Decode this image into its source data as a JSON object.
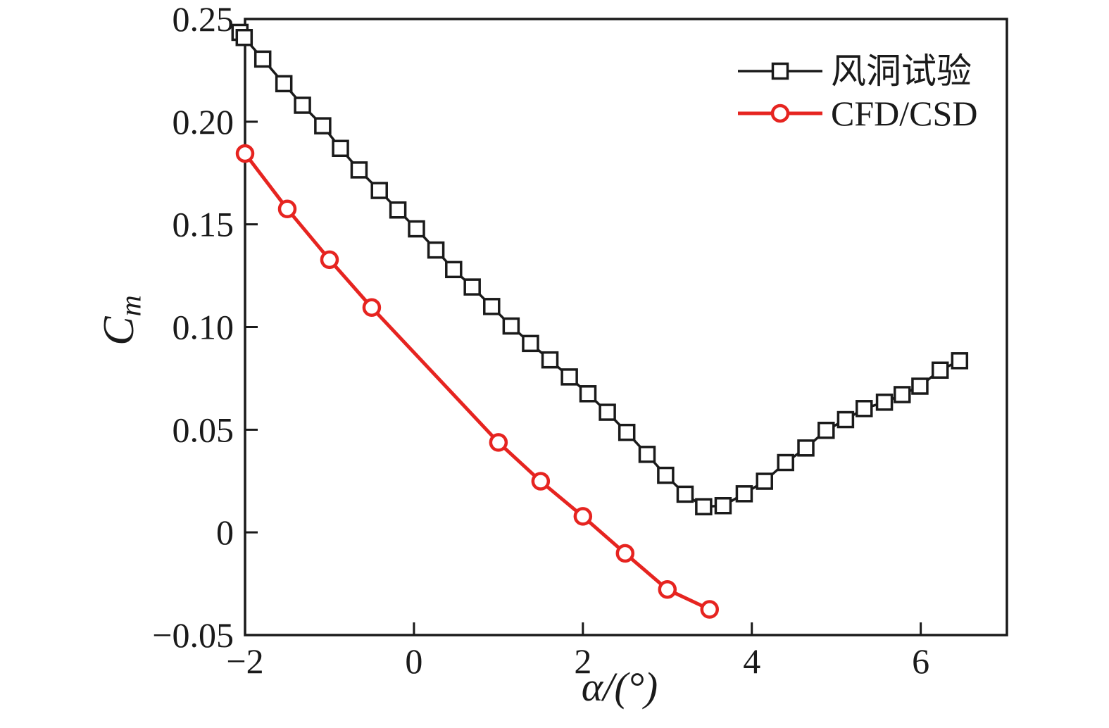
{
  "chart_data": {
    "type": "line",
    "title": "",
    "xlabel": "α/(°)",
    "ylabel": "C",
    "ylabel_sub": "m",
    "xlim": [
      -2,
      7.02
    ],
    "ylim": [
      -0.05,
      0.25
    ],
    "grid": false,
    "legend_position": "upper-right",
    "frame_color": "#1a1a1a",
    "x_ticks": {
      "values": [
        -2,
        0,
        2,
        4,
        6
      ],
      "labels": [
        "−2",
        "0",
        "2",
        "4",
        "6"
      ]
    },
    "y_ticks": {
      "values": [
        0.25,
        0.2,
        0.15,
        0.1,
        0.05,
        0,
        -0.05
      ],
      "labels": [
        "0.25",
        "0.20",
        "0.15",
        "0.10",
        "0.05",
        "0",
        "−0.05"
      ]
    },
    "series": [
      {
        "name": "风洞试验",
        "color": "#1a1a1a",
        "marker": "square",
        "line_width": 3.5,
        "points": [
          [
            -2.06,
            0.2435
          ],
          [
            -2.01,
            0.241
          ],
          [
            -1.79,
            0.2305
          ],
          [
            -1.54,
            0.2185
          ],
          [
            -1.32,
            0.208
          ],
          [
            -1.08,
            0.198
          ],
          [
            -0.87,
            0.187
          ],
          [
            -0.65,
            0.1765
          ],
          [
            -0.41,
            0.1665
          ],
          [
            -0.19,
            0.157
          ],
          [
            0.03,
            0.1478
          ],
          [
            0.26,
            0.1375
          ],
          [
            0.47,
            0.128
          ],
          [
            0.69,
            0.1195
          ],
          [
            0.92,
            0.11
          ],
          [
            1.15,
            0.1005
          ],
          [
            1.38,
            0.092
          ],
          [
            1.61,
            0.084
          ],
          [
            1.84,
            0.0757
          ],
          [
            2.06,
            0.0675
          ],
          [
            2.29,
            0.0585
          ],
          [
            2.52,
            0.0487
          ],
          [
            2.76,
            0.038
          ],
          [
            2.98,
            0.0278
          ],
          [
            3.21,
            0.0186
          ],
          [
            3.43,
            0.0125
          ],
          [
            3.66,
            0.013
          ],
          [
            3.91,
            0.0188
          ],
          [
            4.15,
            0.0249
          ],
          [
            4.4,
            0.034
          ],
          [
            4.64,
            0.0411
          ],
          [
            4.88,
            0.0497
          ],
          [
            5.11,
            0.0549
          ],
          [
            5.33,
            0.0603
          ],
          [
            5.57,
            0.0634
          ],
          [
            5.78,
            0.0671
          ],
          [
            5.99,
            0.0712
          ],
          [
            6.23,
            0.079
          ],
          [
            6.46,
            0.0836
          ]
        ]
      },
      {
        "name": "CFD/CSD",
        "color": "#e62420",
        "marker": "circle",
        "line_width": 5,
        "points": [
          [
            -2.0,
            0.1845
          ],
          [
            -1.5,
            0.1575
          ],
          [
            -1.0,
            0.1328
          ],
          [
            -0.5,
            0.1095
          ],
          [
            1.0,
            0.0438
          ],
          [
            1.5,
            0.0249
          ],
          [
            2.0,
            0.0078
          ],
          [
            2.5,
            -0.0102
          ],
          [
            3.0,
            -0.0278
          ],
          [
            3.5,
            -0.0375
          ]
        ]
      }
    ]
  }
}
